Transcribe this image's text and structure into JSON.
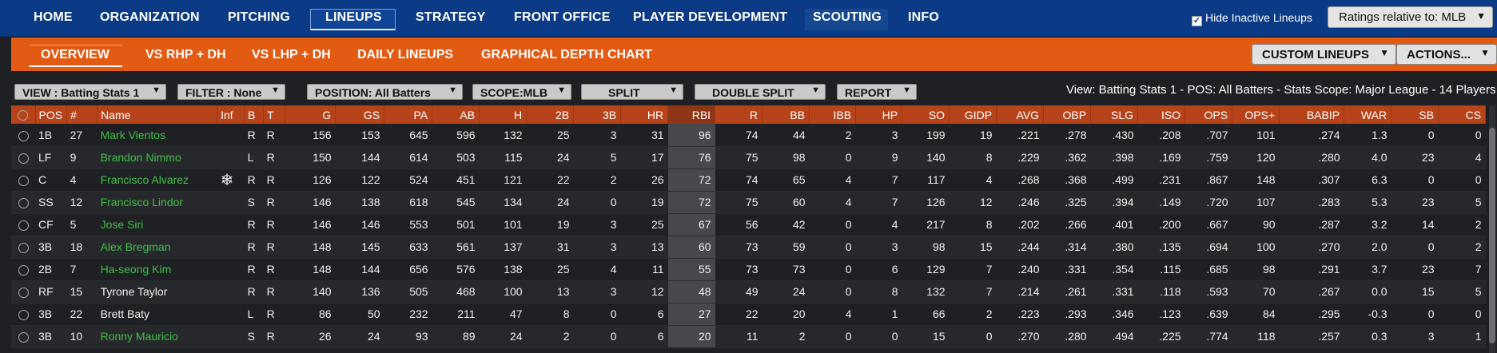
{
  "topnav": {
    "items": [
      "HOME",
      "ORGANIZATION",
      "PITCHING",
      "LINEUPS",
      "STRATEGY",
      "FRONT OFFICE",
      "PLAYER DEVELOPMENT",
      "SCOUTING",
      "INFO"
    ],
    "active": "LINEUPS",
    "hide_inactive_label": "Hide Inactive Lineups",
    "hide_inactive_checked": true,
    "ratings_label": "Ratings relative to: MLB"
  },
  "subnav": {
    "items": [
      "OVERVIEW",
      "VS RHP + DH",
      "VS LHP + DH",
      "DAILY LINEUPS",
      "GRAPHICAL DEPTH CHART"
    ],
    "active": "OVERVIEW",
    "custom_lineups": "CUSTOM LINEUPS",
    "actions": "ACTIONS..."
  },
  "filters": {
    "view": "VIEW : Batting Stats 1",
    "filter": "FILTER : None",
    "position": "POSITION: All Batters",
    "scope": "SCOPE:MLB",
    "split": "SPLIT",
    "double_split": "DOUBLE SPLIT",
    "report": "REPORT",
    "description": "View: Batting Stats 1 - POS: All Batters - Stats Scope: Major League - 14 Players"
  },
  "columns": [
    "POS",
    "#",
    "Name",
    "Inf",
    "B",
    "T",
    "G",
    "GS",
    "PA",
    "AB",
    "H",
    "2B",
    "3B",
    "HR",
    "RBI",
    "R",
    "BB",
    "IBB",
    "HP",
    "SO",
    "GIDP",
    "AVG",
    "OBP",
    "SLG",
    "ISO",
    "OPS",
    "OPS+",
    "BABIP",
    "WAR",
    "SB",
    "CS"
  ],
  "rows": [
    {
      "pos": "1B",
      "num": "27",
      "name": "Mark Vientos",
      "green": true,
      "inf": "",
      "b": "R",
      "t": "R",
      "g": "156",
      "gs": "153",
      "pa": "645",
      "ab": "596",
      "h": "132",
      "d": "25",
      "tr": "3",
      "hr": "31",
      "rbi": "96",
      "r": "74",
      "bb": "44",
      "ibb": "2",
      "hp": "3",
      "so": "199",
      "gidp": "19",
      "avg": ".221",
      "obp": ".278",
      "slg": ".430",
      "iso": ".208",
      "ops": ".707",
      "opsp": "101",
      "babip": ".274",
      "war": "1.3",
      "sb": "0",
      "cs": "0"
    },
    {
      "pos": "LF",
      "num": "9",
      "name": "Brandon Nimmo",
      "green": true,
      "inf": "",
      "b": "L",
      "t": "R",
      "g": "150",
      "gs": "144",
      "pa": "614",
      "ab": "503",
      "h": "115",
      "d": "24",
      "tr": "5",
      "hr": "17",
      "rbi": "76",
      "r": "75",
      "bb": "98",
      "ibb": "0",
      "hp": "9",
      "so": "140",
      "gidp": "8",
      "avg": ".229",
      "obp": ".362",
      "slg": ".398",
      "iso": ".169",
      "ops": ".759",
      "opsp": "120",
      "babip": ".280",
      "war": "4.0",
      "sb": "23",
      "cs": "4"
    },
    {
      "pos": "C",
      "num": "4",
      "name": "Francisco Alvarez",
      "green": true,
      "inf": "❄",
      "b": "R",
      "t": "R",
      "g": "126",
      "gs": "122",
      "pa": "524",
      "ab": "451",
      "h": "121",
      "d": "22",
      "tr": "2",
      "hr": "26",
      "rbi": "72",
      "r": "74",
      "bb": "65",
      "ibb": "4",
      "hp": "7",
      "so": "117",
      "gidp": "4",
      "avg": ".268",
      "obp": ".368",
      "slg": ".499",
      "iso": ".231",
      "ops": ".867",
      "opsp": "148",
      "babip": ".307",
      "war": "6.3",
      "sb": "0",
      "cs": "0"
    },
    {
      "pos": "SS",
      "num": "12",
      "name": "Francisco Lindor",
      "green": true,
      "inf": "",
      "b": "S",
      "t": "R",
      "g": "146",
      "gs": "138",
      "pa": "618",
      "ab": "545",
      "h": "134",
      "d": "24",
      "tr": "0",
      "hr": "19",
      "rbi": "72",
      "r": "75",
      "bb": "60",
      "ibb": "4",
      "hp": "7",
      "so": "126",
      "gidp": "12",
      "avg": ".246",
      "obp": ".325",
      "slg": ".394",
      "iso": ".149",
      "ops": ".720",
      "opsp": "107",
      "babip": ".283",
      "war": "5.3",
      "sb": "23",
      "cs": "5"
    },
    {
      "pos": "CF",
      "num": "5",
      "name": "Jose Siri",
      "green": true,
      "inf": "",
      "b": "R",
      "t": "R",
      "g": "146",
      "gs": "146",
      "pa": "553",
      "ab": "501",
      "h": "101",
      "d": "19",
      "tr": "3",
      "hr": "25",
      "rbi": "67",
      "r": "56",
      "bb": "42",
      "ibb": "0",
      "hp": "4",
      "so": "217",
      "gidp": "8",
      "avg": ".202",
      "obp": ".266",
      "slg": ".401",
      "iso": ".200",
      "ops": ".667",
      "opsp": "90",
      "babip": ".287",
      "war": "3.2",
      "sb": "14",
      "cs": "2"
    },
    {
      "pos": "3B",
      "num": "18",
      "name": "Alex Bregman",
      "green": true,
      "inf": "",
      "b": "R",
      "t": "R",
      "g": "148",
      "gs": "145",
      "pa": "633",
      "ab": "561",
      "h": "137",
      "d": "31",
      "tr": "3",
      "hr": "13",
      "rbi": "60",
      "r": "73",
      "bb": "59",
      "ibb": "0",
      "hp": "3",
      "so": "98",
      "gidp": "15",
      "avg": ".244",
      "obp": ".314",
      "slg": ".380",
      "iso": ".135",
      "ops": ".694",
      "opsp": "100",
      "babip": ".270",
      "war": "2.0",
      "sb": "0",
      "cs": "2"
    },
    {
      "pos": "2B",
      "num": "7",
      "name": "Ha-seong Kim",
      "green": true,
      "inf": "",
      "b": "R",
      "t": "R",
      "g": "148",
      "gs": "144",
      "pa": "656",
      "ab": "576",
      "h": "138",
      "d": "25",
      "tr": "4",
      "hr": "11",
      "rbi": "55",
      "r": "73",
      "bb": "73",
      "ibb": "0",
      "hp": "6",
      "so": "129",
      "gidp": "7",
      "avg": ".240",
      "obp": ".331",
      "slg": ".354",
      "iso": ".115",
      "ops": ".685",
      "opsp": "98",
      "babip": ".291",
      "war": "3.7",
      "sb": "23",
      "cs": "7"
    },
    {
      "pos": "RF",
      "num": "15",
      "name": "Tyrone Taylor",
      "green": false,
      "inf": "",
      "b": "R",
      "t": "R",
      "g": "140",
      "gs": "136",
      "pa": "505",
      "ab": "468",
      "h": "100",
      "d": "13",
      "tr": "3",
      "hr": "12",
      "rbi": "48",
      "r": "49",
      "bb": "24",
      "ibb": "0",
      "hp": "8",
      "so": "132",
      "gidp": "7",
      "avg": ".214",
      "obp": ".261",
      "slg": ".331",
      "iso": ".118",
      "ops": ".593",
      "opsp": "70",
      "babip": ".267",
      "war": "0.0",
      "sb": "15",
      "cs": "5"
    },
    {
      "pos": "3B",
      "num": "22",
      "name": "Brett Baty",
      "green": false,
      "inf": "",
      "b": "L",
      "t": "R",
      "g": "86",
      "gs": "50",
      "pa": "232",
      "ab": "211",
      "h": "47",
      "d": "8",
      "tr": "0",
      "hr": "6",
      "rbi": "27",
      "r": "22",
      "bb": "20",
      "ibb": "4",
      "hp": "1",
      "so": "66",
      "gidp": "2",
      "avg": ".223",
      "obp": ".293",
      "slg": ".346",
      "iso": ".123",
      "ops": ".639",
      "opsp": "84",
      "babip": ".295",
      "war": "-0.3",
      "sb": "0",
      "cs": "0"
    },
    {
      "pos": "3B",
      "num": "10",
      "name": "Ronny Mauricio",
      "green": true,
      "inf": "",
      "b": "S",
      "t": "R",
      "g": "26",
      "gs": "24",
      "pa": "93",
      "ab": "89",
      "h": "24",
      "d": "2",
      "tr": "0",
      "hr": "6",
      "rbi": "20",
      "r": "11",
      "bb": "2",
      "ibb": "0",
      "hp": "0",
      "so": "15",
      "gidp": "0",
      "avg": ".270",
      "obp": ".280",
      "slg": ".494",
      "iso": ".225",
      "ops": ".774",
      "opsp": "118",
      "babip": ".257",
      "war": "0.3",
      "sb": "3",
      "cs": "1"
    }
  ]
}
